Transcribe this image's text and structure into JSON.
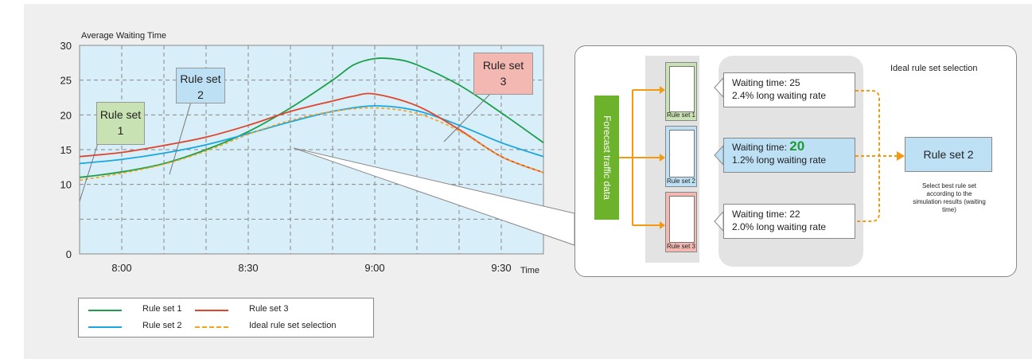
{
  "chart_data": {
    "type": "line",
    "title": "Average Waiting Time",
    "xlabel": "Time",
    "ylabel": "",
    "x_ticks": [
      "8:00",
      "8:30",
      "9:00",
      "9:30"
    ],
    "x_tick_minutes": [
      0,
      30,
      60,
      90
    ],
    "xlim": [
      -10,
      100
    ],
    "y_ticks": [
      0,
      10,
      15,
      20,
      25,
      30
    ],
    "ylim": [
      0,
      30
    ],
    "grid": true,
    "legend_position": "bottom-left",
    "colors": {
      "rule_set_1": "#1ba04a",
      "rule_set_2": "#1aa6e0",
      "rule_set_3": "#e0452a",
      "ideal": "#f5a21b"
    },
    "series": [
      {
        "name": "Rule set 1",
        "color": "#1ba04a",
        "dash": false,
        "x": [
          -10,
          0,
          10,
          20,
          30,
          40,
          50,
          55,
          60,
          65,
          70,
          80,
          90,
          100
        ],
        "y": [
          11.0,
          11.8,
          13.0,
          15.0,
          17.6,
          21.0,
          25.0,
          27.2,
          28.1,
          28.0,
          27.2,
          24.3,
          20.3,
          16.0
        ]
      },
      {
        "name": "Rule set 2",
        "color": "#1aa6e0",
        "dash": false,
        "x": [
          -10,
          0,
          10,
          20,
          30,
          40,
          50,
          60,
          70,
          80,
          90,
          100
        ],
        "y": [
          13.0,
          13.6,
          14.5,
          15.7,
          17.3,
          19.0,
          20.5,
          21.3,
          20.6,
          18.5,
          16.0,
          14.0
        ]
      },
      {
        "name": "Rule set 3",
        "color": "#e0452a",
        "dash": false,
        "x": [
          -10,
          0,
          10,
          20,
          30,
          40,
          50,
          55,
          60,
          70,
          80,
          90,
          100
        ],
        "y": [
          14.0,
          14.6,
          15.6,
          16.8,
          18.5,
          20.5,
          22.0,
          22.7,
          23.0,
          21.3,
          17.9,
          14.0,
          11.7
        ]
      },
      {
        "name": "Ideal rule set selection",
        "color": "#f5a21b",
        "dash": true,
        "x": [
          -10,
          0,
          10,
          20,
          30,
          40,
          50,
          60,
          70,
          80,
          90,
          100
        ],
        "y": [
          10.6,
          11.6,
          12.9,
          14.8,
          17.2,
          19.2,
          20.5,
          21.0,
          20.2,
          17.7,
          14.0,
          11.7
        ]
      }
    ],
    "annotations": [
      "Rule set 1",
      "Rule set 2",
      "Rule set 3"
    ]
  },
  "callouts": {
    "rs1": "Rule set\n1",
    "rs2": "Rule set\n2",
    "rs3": "Rule set\n3"
  },
  "legend": {
    "rs1": "Rule set 1",
    "rs2": "Rule set 2",
    "rs3": "Rule set 3",
    "ideal": "Ideal rule set selection"
  },
  "diagram": {
    "title": "Ideal rule set selection",
    "forecast_label": "Forecast traffic data",
    "rule_sets": [
      "Rule set 1",
      "Rule set 2",
      "Rule set 3"
    ],
    "results": [
      {
        "prefix": "Waiting time: ",
        "value": "25",
        "rate": "2.4% long waiting rate",
        "highlight": false
      },
      {
        "prefix": "Waiting time: ",
        "value": "20",
        "rate": "1.2% long waiting rate",
        "highlight": true
      },
      {
        "prefix": "Waiting time: ",
        "value": "22",
        "rate": "2.0% long waiting rate",
        "highlight": false
      }
    ],
    "selected": "Rule set 2",
    "note": "Select best rule set according to the simulation results (waiting time)",
    "colors": {
      "rs1_fill": "#c9e2b3",
      "rs2_fill": "#bde0f4",
      "rs3_fill": "#f4b8b2",
      "forecast": "#6cb22b",
      "arrow": "#f29a12"
    }
  }
}
